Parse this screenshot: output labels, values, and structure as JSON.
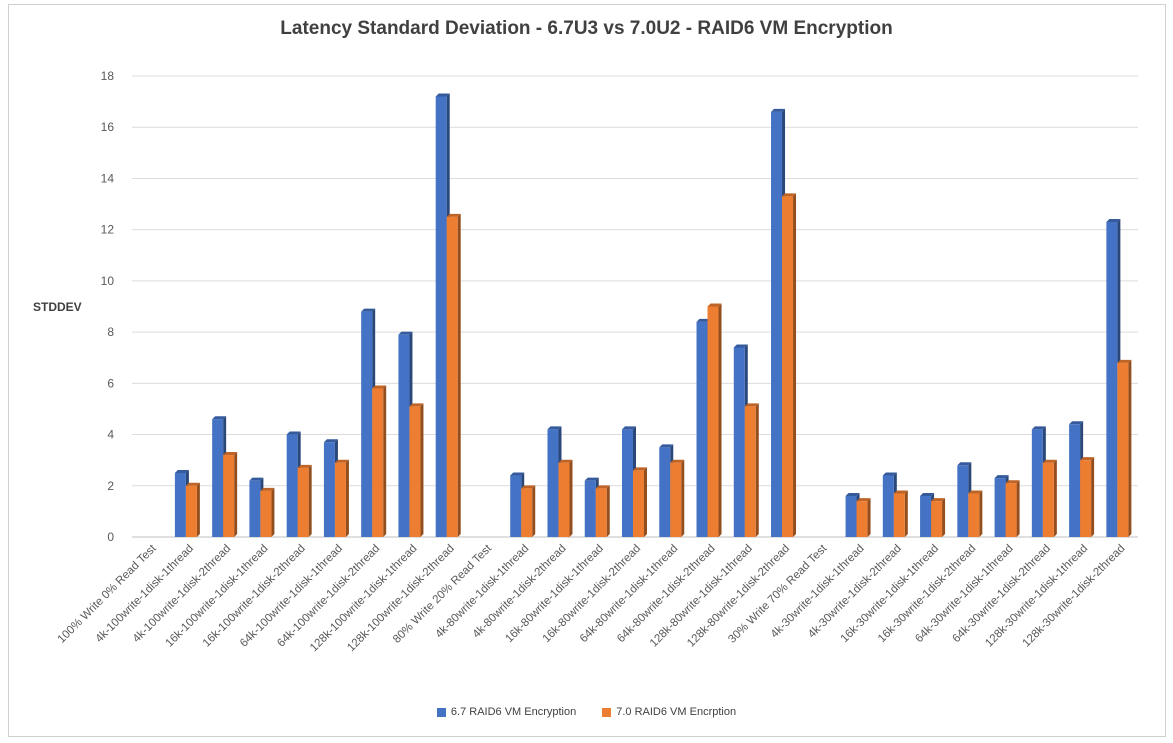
{
  "chart_data": {
    "type": "bar",
    "title": "Latency Standard Deviation - 6.7U3 vs 7.0U2 - RAID6 VM Encryption",
    "xlabel": "",
    "ylabel": "STDDEV",
    "ylim": [
      0,
      18
    ],
    "yticks": [
      0,
      2,
      4,
      6,
      8,
      10,
      12,
      14,
      16,
      18
    ],
    "grid": true,
    "legend_position": "bottom",
    "categories": [
      "100% Write 0% Read Test",
      "4k-100write-1disk-1thread",
      "4k-100write-1disk-2thread",
      "16k-100write-1disk-1thread",
      "16k-100write-1disk-2thread",
      "64k-100write-1disk-1thread",
      "64k-100write-1disk-2thread",
      "128k-100write-1disk-1thread",
      "128k-100write-1disk-2thread",
      "80% Write 20% Read Test",
      "4k-80write-1disk-1thread",
      "4k-80write-1disk-2thread",
      "16k-80write-1disk-1thread",
      "16k-80write-1disk-2thread",
      "64k-80write-1disk-1thread",
      "64k-80write-1disk-2thread",
      "128k-80write-1disk-1thread",
      "128k-80write-1disk-2thread",
      "30% Write 70% Read Test",
      "4k-30write-1disk-1thread",
      "4k-30write-1disk-2thread",
      "16k-30write-1disk-1thread",
      "16k-30write-1disk-2thread",
      "64k-30write-1disk-1thread",
      "64k-30write-1disk-2thread",
      "128k-30write-1disk-1thread",
      "128k-30write-1disk-2thread"
    ],
    "series": [
      {
        "name": "6.7 RAID6 VM Encryption",
        "color": "#4472c4",
        "values": [
          null,
          2.5,
          4.6,
          2.2,
          4.0,
          3.7,
          8.8,
          7.9,
          17.2,
          null,
          2.4,
          4.2,
          2.2,
          4.2,
          3.5,
          8.4,
          7.4,
          16.6,
          null,
          1.6,
          2.4,
          1.6,
          2.8,
          2.3,
          4.2,
          4.4,
          12.3
        ]
      },
      {
        "name": "7.0 RAID6 VM Encrption",
        "color": "#ed7d31",
        "values": [
          null,
          2.0,
          3.2,
          1.8,
          2.7,
          2.9,
          5.8,
          5.1,
          12.5,
          null,
          1.9,
          2.9,
          1.9,
          2.6,
          2.9,
          9.0,
          5.1,
          13.3,
          null,
          1.4,
          1.7,
          1.4,
          1.7,
          2.1,
          2.9,
          3.0,
          6.8
        ]
      }
    ]
  }
}
